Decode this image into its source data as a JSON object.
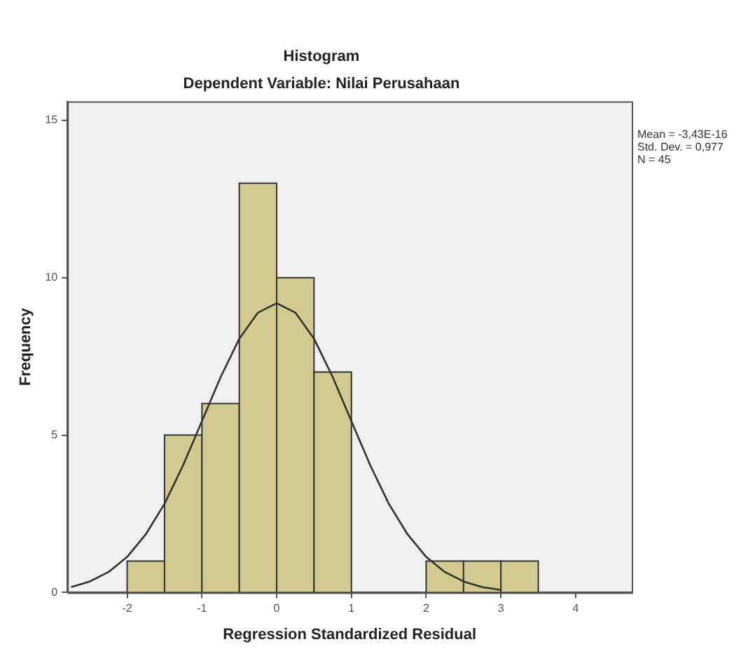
{
  "chart_data": {
    "type": "histogram",
    "title": "Histogram",
    "subtitle": "Dependent Variable: Nilai Perusahaan",
    "xlabel": "Regression Standardized Residual",
    "ylabel": "Frequency",
    "bins": [
      -2,
      -1.5,
      -1,
      -0.5,
      0,
      0.5,
      1,
      1.5,
      2,
      2.5,
      3,
      3.5
    ],
    "values": [
      1,
      5,
      6,
      13,
      10,
      7,
      0,
      0,
      1,
      1,
      1
    ],
    "color": "#d3ca90",
    "series": [
      {
        "type": "line",
        "color": "#333333",
        "x": [
          -2.75,
          -2.5,
          -2.25,
          -2,
          -1.75,
          -1.5,
          -1.25,
          -1,
          -0.75,
          -0.5,
          -0.25,
          0,
          0.25,
          0.5,
          0.75,
          1,
          1.25,
          1.5,
          1.75,
          2,
          2.25,
          2.5,
          2.75,
          3
        ],
        "values": [
          0.17,
          0.35,
          0.65,
          1.13,
          1.85,
          2.82,
          4.05,
          5.44,
          6.84,
          8.06,
          8.89,
          9.19,
          8.89,
          8.06,
          6.84,
          5.44,
          4.05,
          2.82,
          1.85,
          1.13,
          0.65,
          0.35,
          0.17,
          0.08
        ]
      }
    ],
    "marker": "none",
    "xlim": [
      -2.8,
      4.75
    ],
    "xticks": [
      -2,
      -1,
      0,
      1,
      2,
      3,
      4
    ],
    "ylim": [
      0,
      15.6
    ],
    "yticks": [
      0,
      5,
      10,
      15
    ],
    "annotations": [
      "Mean = -3,43E-16",
      "Std. Dev. = 0,977",
      "N = 45"
    ],
    "grid": false,
    "legend": false
  }
}
